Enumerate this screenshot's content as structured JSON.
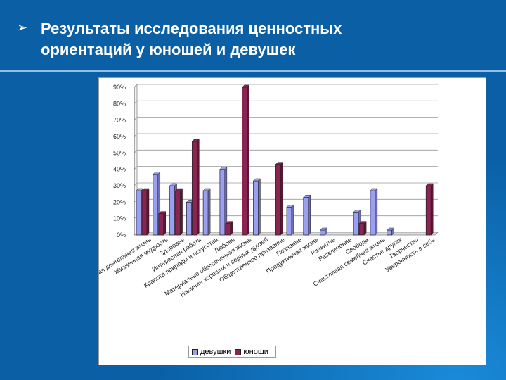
{
  "slide": {
    "bullet": "➢",
    "title_line1": "Результаты исследования ценностных",
    "title_line2": "ориентаций у юношей и девушек"
  },
  "colors": {
    "background": "#0a5fa5",
    "girls": "#9b9fef",
    "boys": "#8a2450"
  },
  "chart_data": {
    "type": "bar",
    "title": "",
    "xlabel": "",
    "ylabel": "",
    "ylim": [
      0,
      90
    ],
    "yticks": [
      "0%",
      "10%",
      "20%",
      "30%",
      "40%",
      "50%",
      "60%",
      "70%",
      "80%",
      "90%"
    ],
    "grid": true,
    "legend_position": "bottom",
    "categories": [
      "Активная деятельная жизнь",
      "Жизненная мудрость",
      "Здоровье",
      "Интересная работа",
      "Красота природы и искусства",
      "Любовь",
      "Материально обеспеченная жизнь",
      "Наличие хороших и верных друзей",
      "Общественное призвание",
      "Познание",
      "Продуктивная жизнь",
      "Развитие",
      "Развлечение",
      "Свобода",
      "Счастливая семейная жизнь",
      "Счастье других",
      "Творчество",
      "Уверенность в себе"
    ],
    "series": [
      {
        "name": "девушки",
        "values": [
          27,
          37,
          30,
          20,
          27,
          40,
          0,
          33,
          0,
          17,
          23,
          3,
          0,
          14,
          27,
          3,
          0,
          0
        ]
      },
      {
        "name": "юноши",
        "values": [
          27,
          13,
          27,
          57,
          0,
          7,
          90,
          0,
          43,
          0,
          0,
          0,
          0,
          7,
          0,
          0,
          0,
          30
        ]
      }
    ]
  }
}
